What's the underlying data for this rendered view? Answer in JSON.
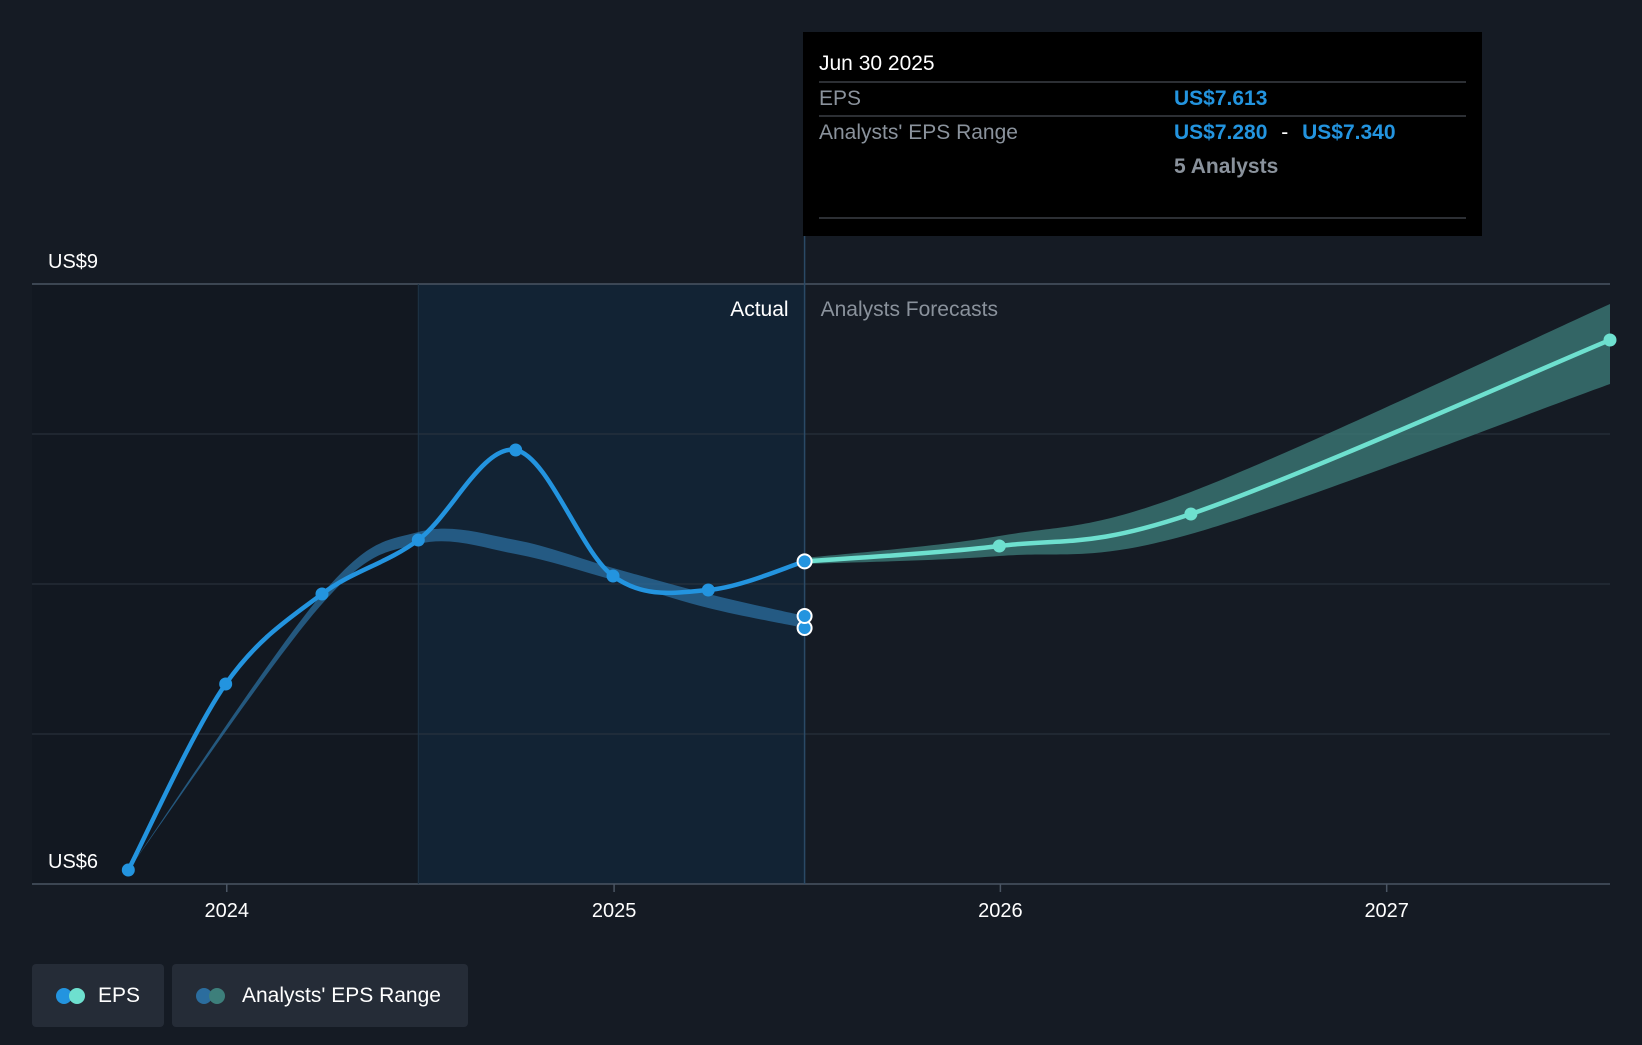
{
  "chart_data": {
    "type": "line",
    "y_axis": {
      "min_label": "US$6",
      "max_label": "US$9",
      "ylim": [
        6.0,
        9.0
      ],
      "gridlines": [
        6.0,
        6.75,
        7.5,
        8.25,
        9.0
      ]
    },
    "x_axis": {
      "tick_labels": [
        "2024",
        "2025",
        "2026",
        "2027"
      ],
      "tick_dates": [
        "2024-01-01",
        "2025-01-01",
        "2026-01-01",
        "2027-01-01"
      ],
      "xlim": [
        "2023-07-01",
        "2027-07-31"
      ]
    },
    "sections": {
      "actual_label": "Actual",
      "forecast_label": "Analysts Forecasts",
      "highlight_start": "2024-06-30",
      "split_date": "2025-06-30"
    },
    "series": [
      {
        "name": "EPS",
        "color": "#2394df",
        "points": [
          {
            "x": "2023-09-30",
            "y": 6.07
          },
          {
            "x": "2023-12-31",
            "y": 7.0
          },
          {
            "x": "2024-03-31",
            "y": 7.45
          },
          {
            "x": "2024-06-30",
            "y": 7.72
          },
          {
            "x": "2024-09-30",
            "y": 8.17
          },
          {
            "x": "2024-12-31",
            "y": 7.54
          },
          {
            "x": "2025-03-31",
            "y": 7.47
          },
          {
            "x": "2025-06-30",
            "y": 7.613
          }
        ]
      },
      {
        "name": "EPS",
        "color": "#6ee0cf",
        "points": [
          {
            "x": "2025-06-30",
            "y": 7.613
          },
          {
            "x": "2025-12-31",
            "y": 7.69
          },
          {
            "x": "2026-06-30",
            "y": 7.85
          },
          {
            "x": "2027-07-31",
            "y": 8.72
          }
        ]
      },
      {
        "name": "Analysts' EPS Range",
        "color": "#2b6d9e",
        "band": [
          {
            "x": "2023-09-30",
            "low": 6.07,
            "high": 6.07
          },
          {
            "x": "2024-03-31",
            "low": 7.4,
            "high": 7.45
          },
          {
            "x": "2024-06-30",
            "low": 7.7,
            "high": 7.76
          },
          {
            "x": "2024-09-30",
            "low": 7.65,
            "high": 7.72
          },
          {
            "x": "2024-12-31",
            "low": 7.52,
            "high": 7.58
          },
          {
            "x": "2025-03-31",
            "low": 7.38,
            "high": 7.45
          },
          {
            "x": "2025-06-30",
            "low": 7.28,
            "high": 7.34
          }
        ]
      },
      {
        "name": "Analysts' EPS Range",
        "color": "#3d7f7b",
        "band": [
          {
            "x": "2025-06-30",
            "low": 7.6,
            "high": 7.63
          },
          {
            "x": "2025-12-31",
            "low": 7.64,
            "high": 7.74
          },
          {
            "x": "2026-06-30",
            "low": 7.75,
            "high": 7.96
          },
          {
            "x": "2027-07-31",
            "low": 8.5,
            "high": 8.9
          }
        ]
      }
    ],
    "range_markers": [
      7.28,
      7.34
    ],
    "tooltip": {
      "date": "Jun 30 2025",
      "eps_label": "EPS",
      "eps_value": "US$7.613",
      "range_label": "Analysts' EPS Range",
      "range_low": "US$7.280",
      "range_sep": "-",
      "range_high": "US$7.340",
      "analysts": "5 Analysts"
    },
    "legend": [
      {
        "label": "EPS",
        "colors": [
          "#2394df",
          "#6ee0cf"
        ]
      },
      {
        "label": "Analysts' EPS Range",
        "colors": [
          "#2b6d9e",
          "#3d7f7b"
        ]
      }
    ]
  }
}
